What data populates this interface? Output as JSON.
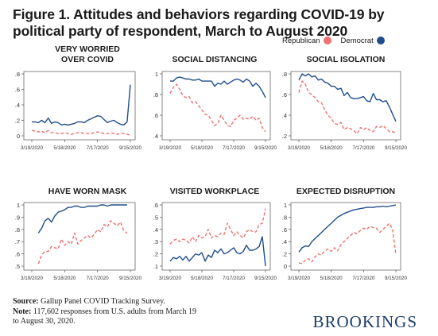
{
  "figure": {
    "title": "Figure 1. Attitudes and behaviors regarding COVID-19 by political party of respondent, March to August 2020",
    "legend": [
      {
        "label": "Republican",
        "color": "#f07070"
      },
      {
        "label": "Democrat",
        "color": "#1f4e8c"
      }
    ],
    "source_label": "Source:",
    "source_text": "Gallup Panel COVID Tracking Survey.",
    "note_label": "Note:",
    "note_text_1": "117,602 responses from U.S. adults from March 19",
    "note_text_2": "to August 30, 2020.",
    "brand": "BROOKINGS"
  },
  "chart_data": [
    {
      "type": "line",
      "title": "VERY WORRIED\nOVER COVID",
      "x_ticks": [
        "3/19/2020",
        "5/18/2020",
        "7/17/2020",
        "9/15/2020"
      ],
      "ylim": [
        0,
        0.8
      ],
      "y_ticks": [
        0,
        0.2,
        0.4,
        0.6,
        0.8
      ],
      "y_tick_labels": [
        "0",
        ".2",
        ".4",
        ".6",
        ".8"
      ],
      "series": [
        {
          "name": "Democrat",
          "values": [
            0.18,
            0.18,
            0.17,
            0.2,
            0.17,
            0.23,
            0.16,
            0.18,
            0.17,
            0.14,
            0.15,
            0.14,
            0.15,
            0.16,
            0.18,
            0.18,
            0.17,
            0.2,
            0.22,
            0.24,
            0.26,
            0.25,
            0.21,
            0.17,
            0.19,
            0.2,
            0.17,
            0.15,
            0.14,
            0.18,
            0.66
          ]
        },
        {
          "name": "Republican",
          "values": [
            0.07,
            0.06,
            0.05,
            0.06,
            0.04,
            0.07,
            0.04,
            0.04,
            0.03,
            0.03,
            0.04,
            0.03,
            0.02,
            0.03,
            0.04,
            0.04,
            0.03,
            0.03,
            0.03,
            0.04,
            0.05,
            0.04,
            0.03,
            0.03,
            0.04,
            0.03,
            0.02,
            0.03,
            0.03,
            0.02,
            0.01
          ]
        }
      ]
    },
    {
      "type": "line",
      "title": "SOCIAL DISTANCING",
      "x_ticks": [
        "3/19/2020",
        "5/18/2020",
        "7/17/2020",
        "9/15/2020"
      ],
      "ylim": [
        0.4,
        1.0
      ],
      "y_ticks": [
        0.4,
        0.6,
        0.8,
        1.0
      ],
      "y_tick_labels": [
        ".4",
        ".6",
        ".8",
        "1"
      ],
      "series": [
        {
          "name": "Democrat",
          "values": [
            0.93,
            0.93,
            0.96,
            0.97,
            0.96,
            0.95,
            0.95,
            0.94,
            0.94,
            0.95,
            0.93,
            0.93,
            0.93,
            0.93,
            0.88,
            0.91,
            0.9,
            0.93,
            0.9,
            0.92,
            0.94,
            0.95,
            0.94,
            0.92,
            0.95,
            0.93,
            0.88,
            0.91,
            0.88,
            0.83,
            0.77
          ]
        },
        {
          "name": "Republican",
          "values": [
            0.81,
            0.87,
            0.9,
            0.85,
            0.79,
            0.77,
            0.78,
            0.72,
            0.73,
            0.69,
            0.65,
            0.61,
            0.6,
            0.55,
            0.5,
            0.52,
            0.6,
            0.55,
            0.5,
            0.49,
            0.55,
            0.57,
            0.6,
            0.56,
            0.57,
            0.56,
            0.59,
            0.55,
            0.57,
            0.48,
            0.44
          ]
        }
      ]
    },
    {
      "type": "line",
      "title": "SOCIAL ISOLATION",
      "x_ticks": [
        "3/19/2020",
        "5/18/2020",
        "7/17/2020",
        "9/15/2020"
      ],
      "ylim": [
        0.2,
        0.8
      ],
      "y_ticks": [
        0.2,
        0.4,
        0.6,
        0.8
      ],
      "y_tick_labels": [
        ".2",
        ".4",
        ".6",
        ".8"
      ],
      "series": [
        {
          "name": "Democrat",
          "values": [
            0.74,
            0.8,
            0.78,
            0.8,
            0.77,
            0.78,
            0.74,
            0.75,
            0.72,
            0.71,
            0.68,
            0.68,
            0.65,
            0.66,
            0.59,
            0.62,
            0.57,
            0.56,
            0.56,
            0.57,
            0.58,
            0.54,
            0.53,
            0.61,
            0.55,
            0.55,
            0.53,
            0.54,
            0.48,
            0.41,
            0.34
          ]
        },
        {
          "name": "Republican",
          "values": [
            0.62,
            0.73,
            0.7,
            0.62,
            0.6,
            0.57,
            0.53,
            0.52,
            0.45,
            0.4,
            0.37,
            0.32,
            0.31,
            0.33,
            0.26,
            0.28,
            0.27,
            0.25,
            0.22,
            0.28,
            0.26,
            0.28,
            0.25,
            0.24,
            0.29,
            0.28,
            0.3,
            0.27,
            0.24,
            0.24,
            0.23
          ]
        }
      ]
    },
    {
      "type": "line",
      "title": "HAVE WORN MASK",
      "x_ticks": [
        "3/19/2020",
        "5/18/2020",
        "7/17/2020",
        "9/15/2020"
      ],
      "ylim": [
        0.5,
        1.0
      ],
      "y_ticks": [
        0.5,
        0.6,
        0.7,
        0.8,
        0.9,
        1.0
      ],
      "y_tick_labels": [
        ".5",
        ".6",
        ".7",
        ".8",
        ".9",
        "1"
      ],
      "x_start": 2,
      "series": [
        {
          "name": "Democrat",
          "values": [
            0.77,
            0.81,
            0.87,
            0.89,
            0.86,
            0.91,
            0.94,
            0.95,
            0.96,
            0.98,
            0.98,
            0.99,
            0.99,
            0.98,
            0.98,
            0.99,
            0.99,
            0.99,
            0.99,
            1.0,
            1.0,
            0.99,
            1.0,
            1.0,
            1.0,
            1.0,
            1.0,
            1.0
          ]
        },
        {
          "name": "Republican",
          "values": [
            0.52,
            0.59,
            0.62,
            0.62,
            0.66,
            0.65,
            0.64,
            0.72,
            0.67,
            0.7,
            0.68,
            0.77,
            0.68,
            0.71,
            0.73,
            0.75,
            0.73,
            0.76,
            0.8,
            0.78,
            0.84,
            0.82,
            0.87,
            0.85,
            0.83,
            0.86,
            0.79,
            0.77
          ]
        }
      ]
    },
    {
      "type": "line",
      "title": "VISITED WORKPLACE",
      "x_ticks": [
        "3/19/2020",
        "5/18/2020",
        "7/17/2020",
        "9/15/2020"
      ],
      "ylim": [
        0.1,
        0.6
      ],
      "y_ticks": [
        0.1,
        0.2,
        0.3,
        0.4,
        0.5,
        0.6
      ],
      "y_tick_labels": [
        ".1",
        ".2",
        ".3",
        ".4",
        ".5",
        ".6"
      ],
      "series": [
        {
          "name": "Democrat",
          "values": [
            0.14,
            0.17,
            0.16,
            0.18,
            0.15,
            0.18,
            0.14,
            0.17,
            0.2,
            0.19,
            0.21,
            0.14,
            0.19,
            0.17,
            0.23,
            0.21,
            0.24,
            0.2,
            0.21,
            0.23,
            0.25,
            0.21,
            0.2,
            0.22,
            0.27,
            0.23,
            0.23,
            0.24,
            0.26,
            0.34,
            0.1
          ]
        },
        {
          "name": "Republican",
          "values": [
            0.28,
            0.31,
            0.32,
            0.3,
            0.32,
            0.31,
            0.29,
            0.34,
            0.3,
            0.35,
            0.33,
            0.34,
            0.4,
            0.33,
            0.35,
            0.34,
            0.37,
            0.36,
            0.45,
            0.4,
            0.35,
            0.38,
            0.35,
            0.33,
            0.38,
            0.4,
            0.38,
            0.38,
            0.44,
            0.45,
            0.57
          ]
        }
      ]
    },
    {
      "type": "line",
      "title": "EXPECTED DISRUPTION",
      "x_ticks": [
        "3/19/2020",
        "5/18/2020",
        "7/17/2020",
        "9/15/2020"
      ],
      "ylim": [
        0,
        1.0
      ],
      "y_ticks": [
        0,
        0.2,
        0.4,
        0.6,
        0.8,
        1.0
      ],
      "y_tick_labels": [
        "0",
        ".2",
        ".4",
        ".6",
        ".8",
        "1"
      ],
      "series": [
        {
          "name": "Democrat",
          "values": [
            0.23,
            0.3,
            0.33,
            0.32,
            0.4,
            0.45,
            0.5,
            0.55,
            0.6,
            0.65,
            0.7,
            0.75,
            0.8,
            0.83,
            0.86,
            0.88,
            0.9,
            0.92,
            0.93,
            0.94,
            0.95,
            0.96,
            0.96,
            0.96,
            0.97,
            0.97,
            0.98,
            0.97,
            0.98,
            0.99,
            1.0
          ]
        },
        {
          "name": "Republican",
          "values": [
            0.05,
            0.04,
            0.1,
            0.12,
            0.07,
            0.15,
            0.2,
            0.18,
            0.25,
            0.28,
            0.24,
            0.3,
            0.25,
            0.35,
            0.4,
            0.45,
            0.5,
            0.55,
            0.53,
            0.58,
            0.62,
            0.6,
            0.65,
            0.63,
            0.62,
            0.55,
            0.6,
            0.65,
            0.7,
            0.6,
            0.19
          ]
        }
      ]
    }
  ]
}
